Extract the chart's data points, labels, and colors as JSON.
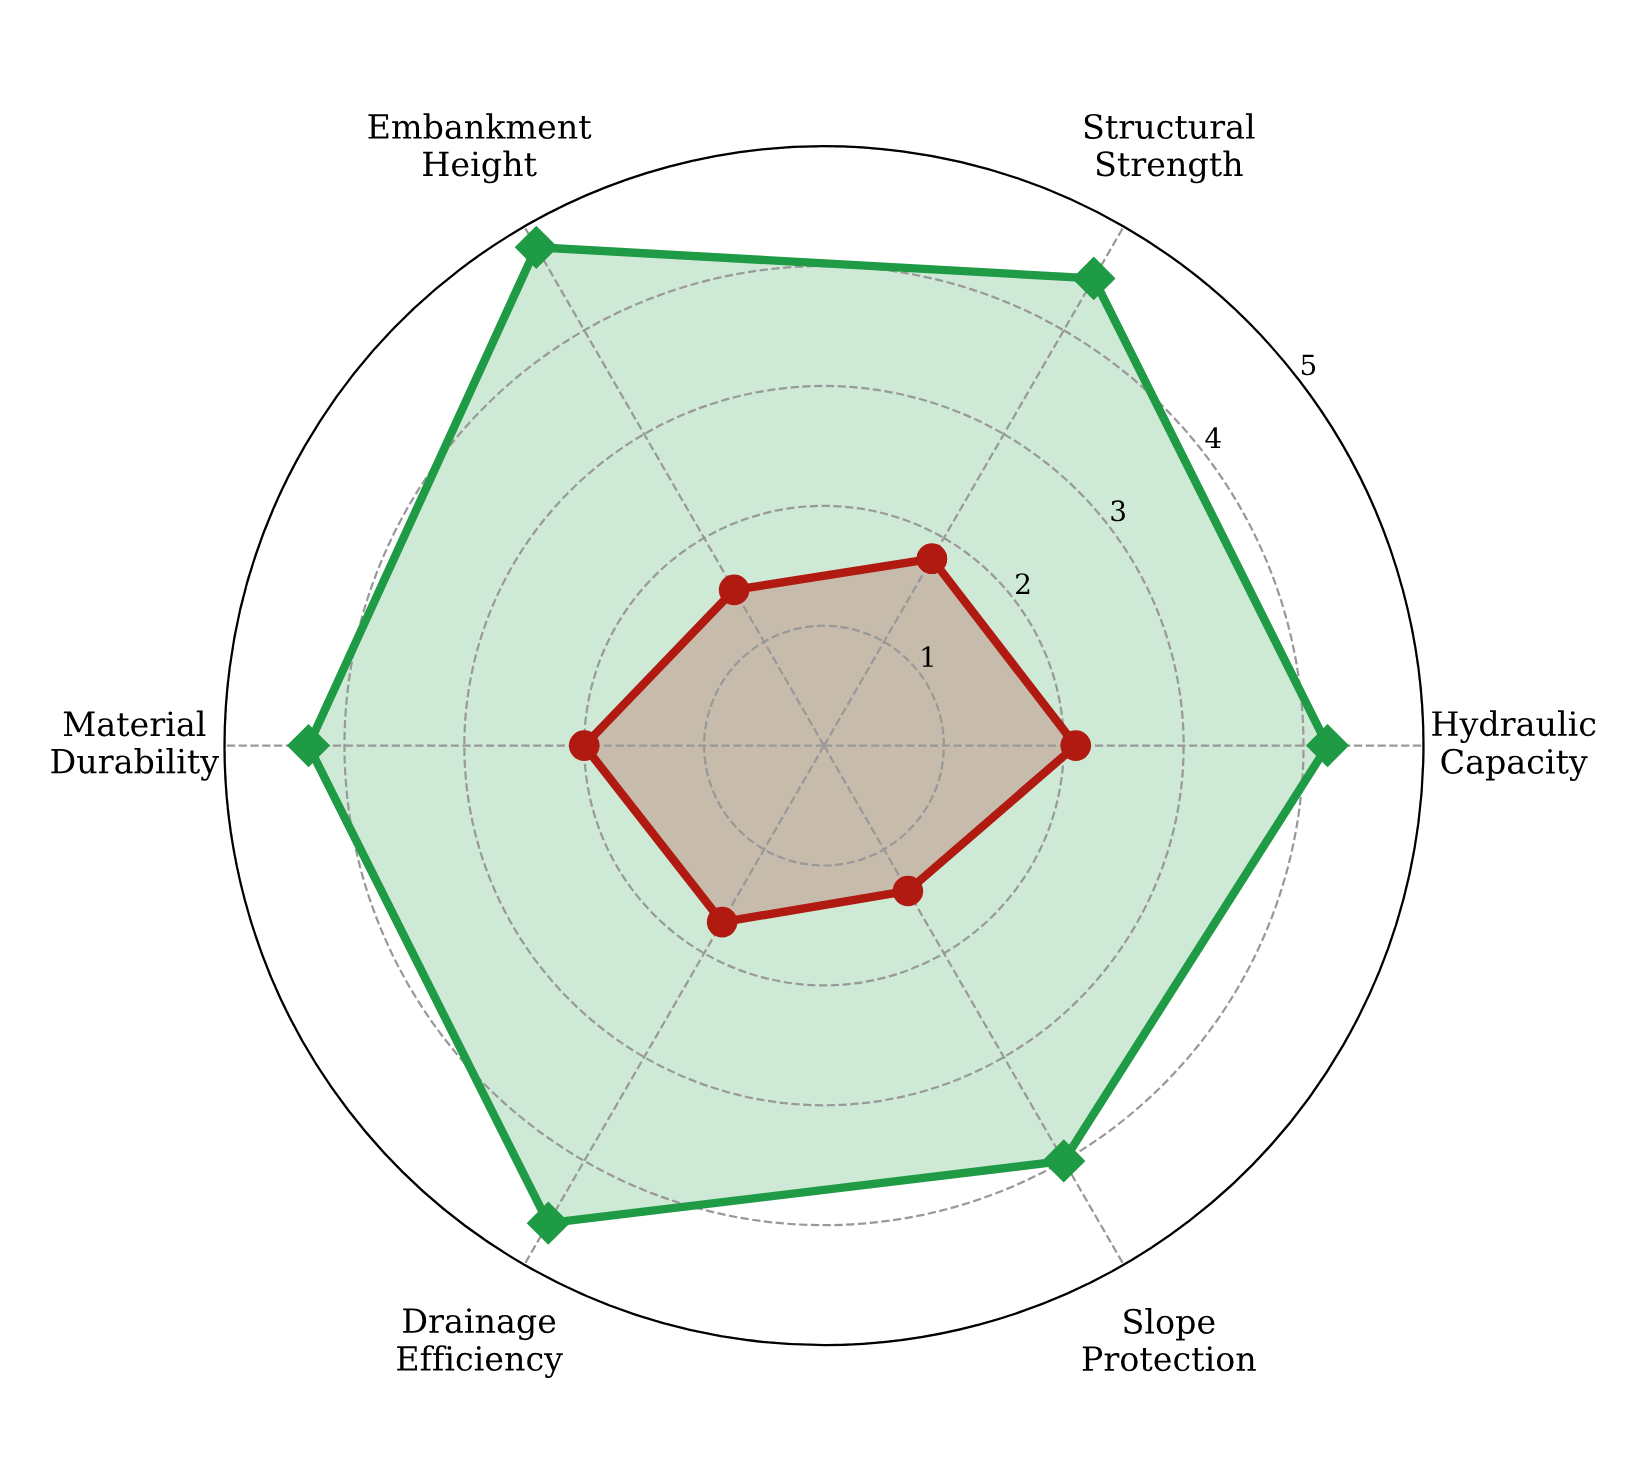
{
  "chart_data": {
    "type": "radar",
    "categories": [
      "Structural\nStrength",
      "Hydraulic\nCapacity",
      "Slope\nProtection",
      "Drainage\nEfficiency",
      "Material\nDurability",
      "Embankment\nHeight"
    ],
    "series": [
      {
        "color": "#1f9a45",
        "marker": "diamond",
        "values": [
          4.5,
          4.2,
          4.0,
          4.6,
          4.3,
          4.8
        ]
      },
      {
        "color": "#b01a10",
        "marker": "circle",
        "values": [
          1.8,
          2.1,
          1.4,
          1.7,
          2.0,
          1.5
        ]
      }
    ],
    "ylim": [
      0,
      5
    ],
    "yticks": [
      1,
      2,
      3,
      4,
      5
    ],
    "grid": true,
    "line_style": "solid"
  }
}
